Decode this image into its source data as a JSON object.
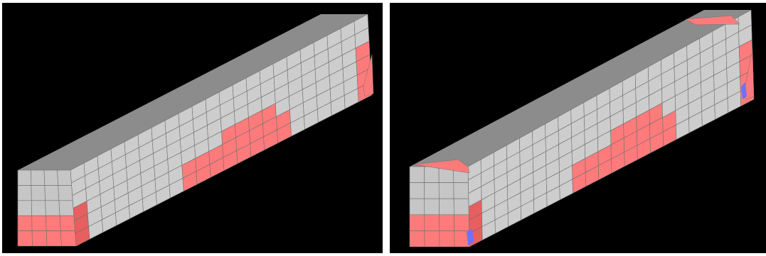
{
  "colors": {
    "background": "#000000",
    "top_face": "#8c8c8c",
    "side_face": "#cdcdcd",
    "end_face": "#c6c6c6",
    "grid_line": "#6f6f6f",
    "damage": "#ff7b7b",
    "damage_dark": "#e85f5f",
    "compression": "#7070ff"
  },
  "panels": [
    {
      "id": "left",
      "label": "",
      "damage_top": false,
      "blue_marks": false
    },
    {
      "id": "right",
      "label": "",
      "damage_top": true,
      "blue_marks": true
    }
  ]
}
